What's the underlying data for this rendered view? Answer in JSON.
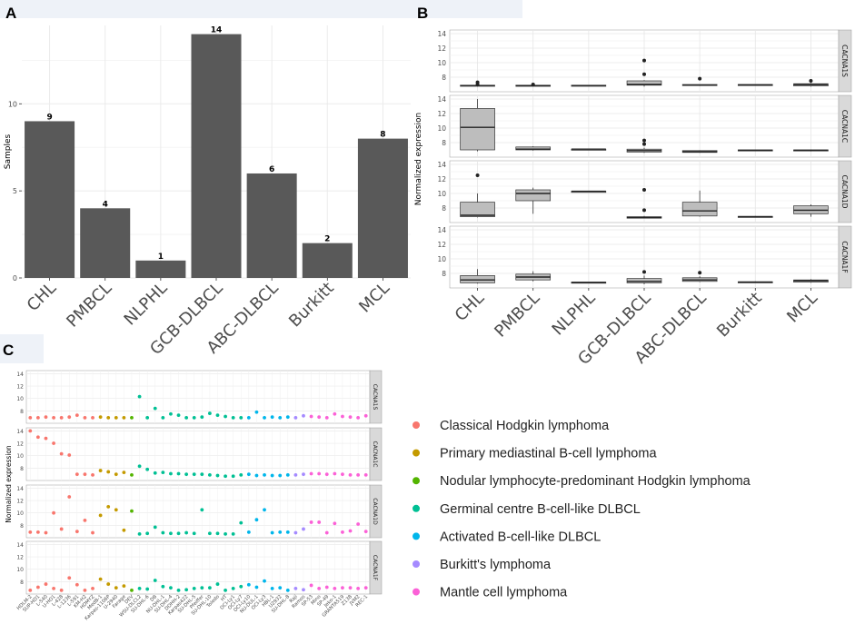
{
  "panels": {
    "A": {
      "letter": "A"
    },
    "B": {
      "letter": "B"
    },
    "C": {
      "letter": "C"
    }
  },
  "chart_data": [
    {
      "id": "A",
      "type": "bar",
      "title": "",
      "xlabel": "",
      "ylabel": "Samples",
      "ylim": [
        0,
        14.5
      ],
      "yticks": [
        0,
        5,
        10
      ],
      "categories": [
        "CHL",
        "PMBCL",
        "NLPHL",
        "GCB-DLBCL",
        "ABC-DLBCL",
        "Burkitt",
        "MCL"
      ],
      "values": [
        9,
        4,
        1,
        14,
        6,
        2,
        8
      ],
      "bar_color": "#595959"
    },
    {
      "id": "B",
      "type": "boxplot",
      "ylabel": "Normalized expression",
      "ylim": [
        6,
        14.5
      ],
      "yticks": [
        8,
        10,
        12,
        14
      ],
      "categories": [
        "CHL",
        "PMBCL",
        "NLPHL",
        "GCB-DLBCL",
        "ABC-DLBCL",
        "Burkitt",
        "MCL"
      ],
      "facets": [
        {
          "label": "CACNA1S",
          "boxes": [
            {
              "min": 6.7,
              "q1": 6.8,
              "med": 6.85,
              "q3": 6.9,
              "max": 6.95,
              "outliers": [
                7.0,
                7.3
              ]
            },
            {
              "min": 6.7,
              "q1": 6.78,
              "med": 6.82,
              "q3": 6.9,
              "max": 6.95,
              "outliers": [
                7.0
              ]
            },
            {
              "min": 6.8,
              "q1": 6.8,
              "med": 6.85,
              "q3": 6.9,
              "max": 6.9,
              "outliers": []
            },
            {
              "min": 6.7,
              "q1": 6.9,
              "med": 7.0,
              "q3": 7.5,
              "max": 7.6,
              "outliers": [
                8.4,
                10.3
              ]
            },
            {
              "min": 6.8,
              "q1": 6.85,
              "med": 6.9,
              "q3": 7.0,
              "max": 7.0,
              "outliers": [
                7.8
              ]
            },
            {
              "min": 6.9,
              "q1": 6.9,
              "med": 6.95,
              "q3": 7.0,
              "max": 7.0,
              "outliers": []
            },
            {
              "min": 6.7,
              "q1": 6.8,
              "med": 7.0,
              "q3": 7.1,
              "max": 7.2,
              "outliers": [
                7.5
              ]
            }
          ]
        },
        {
          "label": "CACNA1C",
          "boxes": [
            {
              "min": 6.8,
              "q1": 7.0,
              "med": 10.1,
              "q3": 12.7,
              "max": 14.0,
              "outliers": []
            },
            {
              "min": 6.9,
              "q1": 7.0,
              "med": 7.1,
              "q3": 7.4,
              "max": 7.5,
              "outliers": []
            },
            {
              "min": 7.1,
              "q1": 7.1,
              "med": 7.1,
              "q3": 7.1,
              "max": 7.1,
              "outliers": []
            },
            {
              "min": 6.6,
              "q1": 6.7,
              "med": 6.9,
              "q3": 7.1,
              "max": 7.3,
              "outliers": [
                7.8,
                8.3
              ]
            },
            {
              "min": 6.6,
              "q1": 6.65,
              "med": 6.75,
              "q3": 6.9,
              "max": 6.95,
              "outliers": []
            },
            {
              "min": 6.9,
              "q1": 6.9,
              "med": 6.95,
              "q3": 7.0,
              "max": 7.0,
              "outliers": []
            },
            {
              "min": 6.8,
              "q1": 6.85,
              "med": 6.95,
              "q3": 7.0,
              "max": 7.05,
              "outliers": []
            }
          ]
        },
        {
          "label": "CACNA1D",
          "boxes": [
            {
              "min": 6.7,
              "q1": 6.8,
              "med": 7.0,
              "q3": 8.8,
              "max": 10.0,
              "outliers": [
                12.5
              ]
            },
            {
              "min": 7.2,
              "q1": 9.0,
              "med": 10.0,
              "q3": 10.5,
              "max": 10.8,
              "outliers": []
            },
            {
              "min": 10.3,
              "q1": 10.3,
              "med": 10.3,
              "q3": 10.3,
              "max": 10.3,
              "outliers": []
            },
            {
              "min": 6.6,
              "q1": 6.6,
              "med": 6.7,
              "q3": 6.8,
              "max": 6.9,
              "outliers": [
                7.7,
                10.5
              ]
            },
            {
              "min": 6.8,
              "q1": 6.9,
              "med": 7.6,
              "q3": 8.8,
              "max": 10.4,
              "outliers": []
            },
            {
              "min": 6.7,
              "q1": 6.75,
              "med": 6.8,
              "q3": 6.85,
              "max": 6.9,
              "outliers": []
            },
            {
              "min": 6.8,
              "q1": 7.2,
              "med": 7.7,
              "q3": 8.3,
              "max": 8.5,
              "outliers": []
            }
          ]
        },
        {
          "label": "CACNA1F",
          "boxes": [
            {
              "min": 6.6,
              "q1": 6.7,
              "med": 7.1,
              "q3": 7.7,
              "max": 8.6,
              "outliers": []
            },
            {
              "min": 6.9,
              "q1": 7.1,
              "med": 7.5,
              "q3": 7.9,
              "max": 8.3,
              "outliers": []
            },
            {
              "min": 6.7,
              "q1": 6.7,
              "med": 6.75,
              "q3": 6.8,
              "max": 6.8,
              "outliers": []
            },
            {
              "min": 6.5,
              "q1": 6.7,
              "med": 6.9,
              "q3": 7.3,
              "max": 7.7,
              "outliers": [
                8.2
              ]
            },
            {
              "min": 6.8,
              "q1": 6.9,
              "med": 7.1,
              "q3": 7.4,
              "max": 7.6,
              "outliers": [
                8.1
              ]
            },
            {
              "min": 6.7,
              "q1": 6.75,
              "med": 6.8,
              "q3": 6.85,
              "max": 6.9,
              "outliers": []
            },
            {
              "min": 6.7,
              "q1": 6.8,
              "med": 7.0,
              "q3": 7.1,
              "max": 7.2,
              "outliers": []
            }
          ]
        }
      ]
    },
    {
      "id": "C",
      "type": "scatter",
      "ylabel": "Normalized expression",
      "ylim": [
        6,
        14.5
      ],
      "yticks": [
        8,
        10,
        12,
        14
      ],
      "cell_lines": [
        "HDLM-2",
        "SUP-HD1",
        "L-540",
        "U-HO1",
        "L-428",
        "L-1236",
        "L-591",
        "KM-H2",
        "HDMYZ",
        "MedB-1",
        "Karpas-1106P",
        "U-2940",
        "Farage",
        "DEV",
        "WSU-DLCL2",
        "SU-DHL-6",
        "DB",
        "NU-DHL-1",
        "SU-DHL-4",
        "DOHH-2",
        "Karpas422",
        "SU-DHL-5",
        "Pfeiffer",
        "SU-DHL-10",
        "Toledo",
        "HT",
        "OCI-Ly1",
        "OCI-Ly7",
        "OCI-Ly10",
        "NU-DUL-1",
        "OCI-Ly3",
        "HBL-1",
        "U2932",
        "SU-DHL-8",
        "Raji",
        "Ramos",
        "SP-53",
        "Mino",
        "SP-49",
        "Jeko-1",
        "GRANTA519",
        "Z138",
        "JVM2",
        "REC-1"
      ],
      "groups": [
        0,
        0,
        0,
        0,
        0,
        0,
        0,
        0,
        0,
        1,
        1,
        1,
        1,
        2,
        3,
        3,
        3,
        3,
        3,
        3,
        3,
        3,
        3,
        3,
        3,
        3,
        3,
        3,
        4,
        4,
        4,
        4,
        4,
        4,
        5,
        5,
        6,
        6,
        6,
        6,
        6,
        6,
        6,
        6
      ],
      "facets": [
        {
          "label": "CACNA1S",
          "values": [
            6.9,
            6.9,
            7.0,
            6.9,
            6.9,
            7.0,
            7.3,
            6.9,
            6.9,
            7.0,
            6.9,
            6.9,
            6.9,
            6.9,
            10.3,
            6.9,
            8.4,
            6.9,
            7.5,
            7.3,
            6.9,
            6.9,
            7.0,
            7.6,
            7.3,
            7.1,
            6.9,
            6.9,
            6.9,
            7.8,
            6.9,
            7.0,
            6.9,
            7.0,
            6.9,
            7.2,
            7.1,
            7.0,
            6.9,
            7.5,
            7.1,
            7.0,
            6.9,
            7.2
          ]
        },
        {
          "label": "CACNA1C",
          "values": [
            14.0,
            13.0,
            12.8,
            12.0,
            10.3,
            10.1,
            7.0,
            7.0,
            6.9,
            7.6,
            7.4,
            7.0,
            7.3,
            6.9,
            8.3,
            7.8,
            7.2,
            7.3,
            7.1,
            7.1,
            7.0,
            7.0,
            7.0,
            6.9,
            6.8,
            6.7,
            6.7,
            6.9,
            7.0,
            6.8,
            6.9,
            6.8,
            6.8,
            6.9,
            6.9,
            7.0,
            7.1,
            7.1,
            7.0,
            7.1,
            7.0,
            6.9,
            6.9,
            6.9
          ]
        },
        {
          "label": "CACNA1D",
          "values": [
            6.9,
            6.9,
            6.8,
            10.0,
            7.4,
            12.6,
            7.0,
            8.8,
            6.8,
            9.6,
            11.0,
            10.5,
            7.2,
            10.3,
            6.6,
            6.7,
            7.7,
            6.8,
            6.7,
            6.7,
            6.8,
            6.7,
            10.5,
            6.7,
            6.7,
            6.6,
            6.6,
            8.4,
            6.9,
            8.9,
            10.5,
            6.8,
            6.9,
            6.9,
            6.8,
            7.4,
            8.5,
            8.5,
            6.8,
            8.3,
            6.9,
            7.1,
            8.2,
            7.0
          ]
        },
        {
          "label": "CACNA1F",
          "values": [
            6.6,
            7.1,
            7.6,
            6.9,
            6.6,
            8.6,
            7.5,
            6.6,
            6.9,
            8.4,
            7.6,
            7.0,
            7.3,
            6.6,
            6.9,
            6.8,
            8.2,
            7.2,
            7.0,
            6.6,
            6.7,
            6.9,
            7.0,
            7.0,
            7.6,
            6.6,
            6.9,
            7.2,
            7.5,
            7.1,
            8.1,
            6.9,
            7.0,
            6.6,
            6.9,
            6.7,
            7.4,
            6.9,
            7.1,
            6.9,
            7.0,
            7.0,
            6.9,
            7.0
          ]
        }
      ],
      "legend": [
        {
          "label": "Classical Hodgkin lymphoma",
          "color": "#F8766D"
        },
        {
          "label": "Primary mediastinal B-cell lymphoma",
          "color": "#C49A00"
        },
        {
          "label": "Nodular lymphocyte-predominant Hodgkin lymphoma",
          "color": "#53B400"
        },
        {
          "label": "Germinal centre B-cell-like DLBCL",
          "color": "#00C094"
        },
        {
          "label": "Activated B-cell-like DLBCL",
          "color": "#00B6EB"
        },
        {
          "label": "Burkitt's lymphoma",
          "color": "#A58AFF"
        },
        {
          "label": "Mantle cell lymphoma",
          "color": "#FB61D7"
        }
      ]
    }
  ]
}
